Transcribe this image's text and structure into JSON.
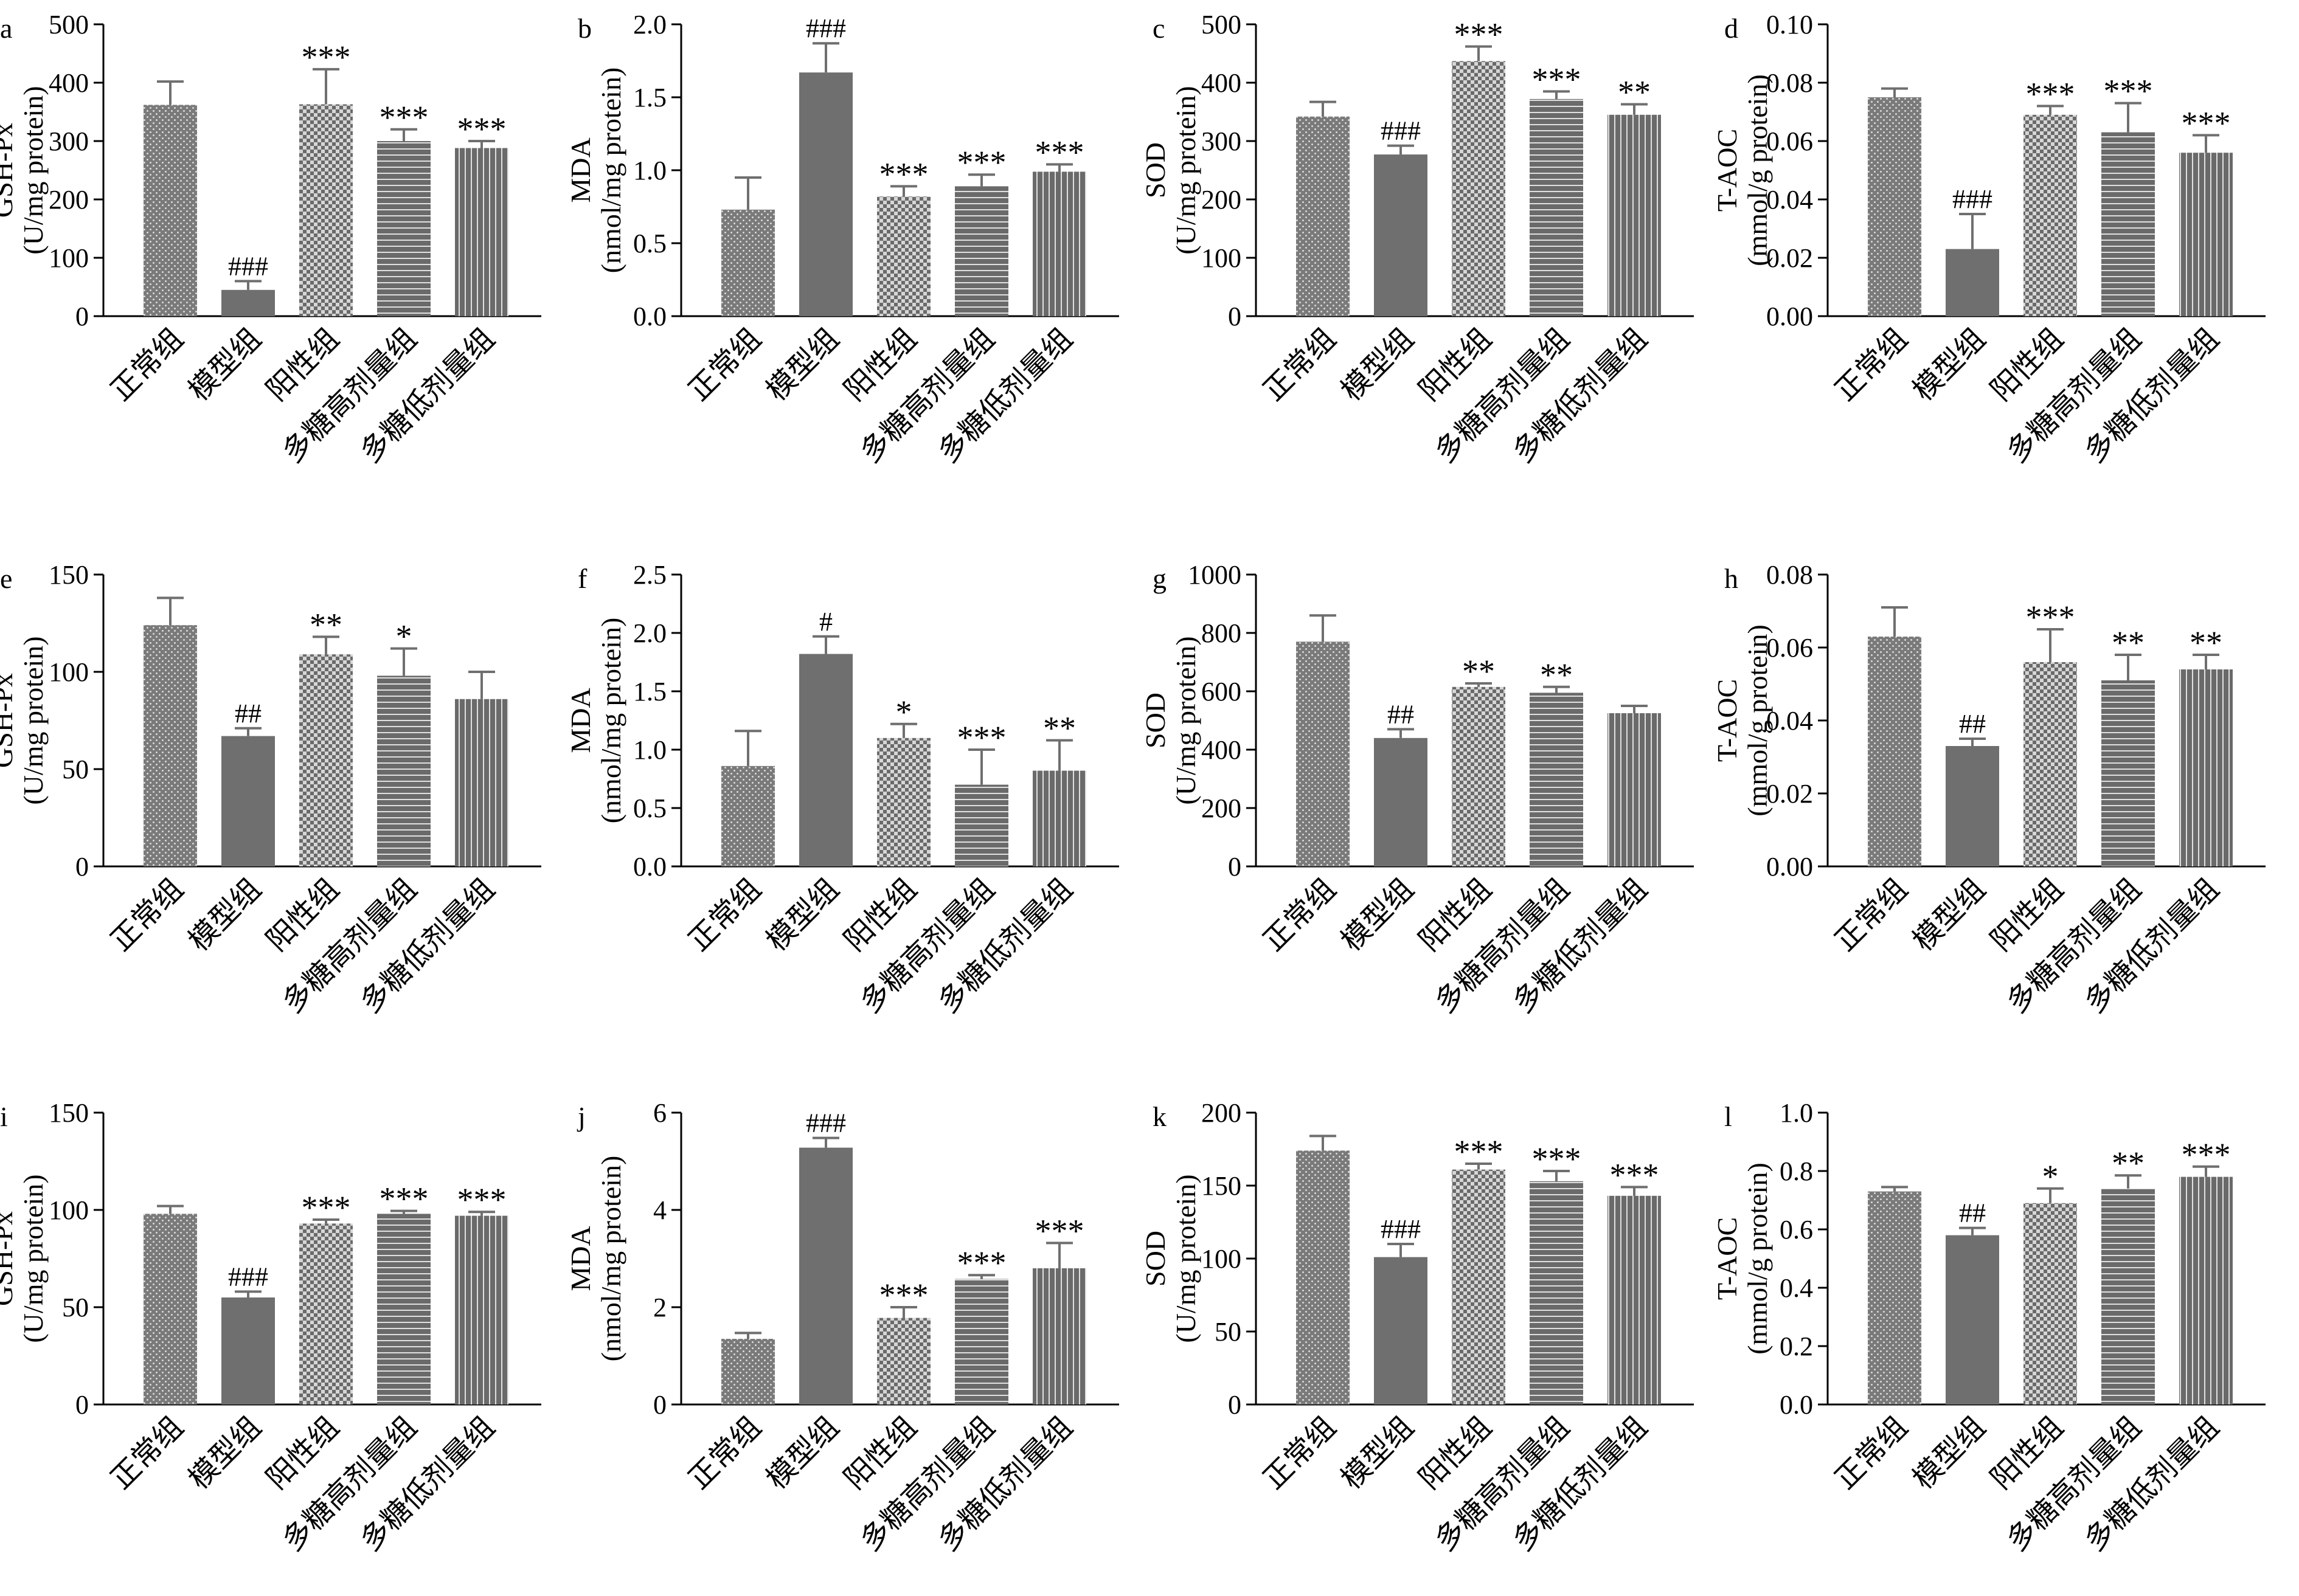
{
  "figure": {
    "categories": [
      "正常组",
      "模型组",
      "阳性组",
      "多糖高剂量组",
      "多糖低剂量组"
    ],
    "colors": {
      "bar": "#6f6f6f",
      "pattern_light": "#d9d9d9",
      "axis": "#000000"
    }
  },
  "chart_data": [
    {
      "panel": "a",
      "type": "bar",
      "ylabel": "GSH-Px",
      "yunit": "(U/mg protein)",
      "ylim": [
        0,
        500
      ],
      "yticks": [
        "0",
        "100",
        "200",
        "300",
        "400",
        "500"
      ],
      "categories": [
        "正常组",
        "模型组",
        "阳性组",
        "多糖高剂量组",
        "多糖低剂量组"
      ],
      "values": [
        362,
        45,
        363,
        300,
        288
      ],
      "errors": [
        40,
        15,
        60,
        20,
        12
      ],
      "annotations": [
        "",
        "###",
        "***",
        "***",
        "***"
      ]
    },
    {
      "panel": "b",
      "type": "bar",
      "ylabel": "MDA",
      "yunit": "(nmol/mg protein)",
      "ylim": [
        0,
        2.0
      ],
      "yticks": [
        "0.0",
        "0.5",
        "1.0",
        "1.5",
        "2.0"
      ],
      "categories": [
        "正常组",
        "模型组",
        "阳性组",
        "多糖高剂量组",
        "多糖低剂量组"
      ],
      "values": [
        0.73,
        1.67,
        0.82,
        0.89,
        0.99
      ],
      "errors": [
        0.22,
        0.2,
        0.07,
        0.08,
        0.05
      ],
      "annotations": [
        "",
        "###",
        "***",
        "***",
        "***"
      ]
    },
    {
      "panel": "c",
      "type": "bar",
      "ylabel": "SOD",
      "yunit": "(U/mg protein)",
      "ylim": [
        0,
        500
      ],
      "yticks": [
        "0",
        "100",
        "200",
        "300",
        "400",
        "500"
      ],
      "categories": [
        "正常组",
        "模型组",
        "阳性组",
        "多糖高剂量组",
        "多糖低剂量组"
      ],
      "values": [
        342,
        277,
        437,
        372,
        345
      ],
      "errors": [
        25,
        15,
        25,
        13,
        18
      ],
      "annotations": [
        "",
        "###",
        "***",
        "***",
        "**"
      ]
    },
    {
      "panel": "d",
      "type": "bar",
      "ylabel": "T-AOC",
      "yunit": "(mmol/g protein)",
      "ylim": [
        0,
        0.1
      ],
      "yticks": [
        "0.00",
        "0.02",
        "0.04",
        "0.06",
        "0.08",
        "0.10"
      ],
      "categories": [
        "正常组",
        "模型组",
        "阳性组",
        "多糖高剂量组",
        "多糖低剂量组"
      ],
      "values": [
        0.075,
        0.023,
        0.069,
        0.063,
        0.056
      ],
      "errors": [
        0.003,
        0.012,
        0.003,
        0.01,
        0.006
      ],
      "annotations": [
        "",
        "###",
        "***",
        "***",
        "***"
      ]
    },
    {
      "panel": "e",
      "type": "bar",
      "ylabel": "GSH-Px",
      "yunit": "(U/mg protein)",
      "ylim": [
        0,
        150
      ],
      "yticks": [
        "0",
        "50",
        "100",
        "150"
      ],
      "categories": [
        "正常组",
        "模型组",
        "阳性组",
        "多糖高剂量组",
        "多糖低剂量组"
      ],
      "values": [
        124,
        67,
        109,
        98,
        86
      ],
      "errors": [
        14,
        4,
        9,
        14,
        14
      ],
      "annotations": [
        "",
        "##",
        "**",
        "*",
        ""
      ]
    },
    {
      "panel": "f",
      "type": "bar",
      "ylabel": "MDA",
      "yunit": "(nmol/mg protein)",
      "ylim": [
        0,
        2.5
      ],
      "yticks": [
        "0.0",
        "0.5",
        "1.0",
        "1.5",
        "2.0",
        "2.5"
      ],
      "categories": [
        "正常组",
        "模型组",
        "阳性组",
        "多糖高剂量组",
        "多糖低剂量组"
      ],
      "values": [
        0.86,
        1.82,
        1.1,
        0.7,
        0.82
      ],
      "errors": [
        0.3,
        0.15,
        0.12,
        0.3,
        0.26
      ],
      "annotations": [
        "",
        "#",
        "*",
        "***",
        "**"
      ]
    },
    {
      "panel": "g",
      "type": "bar",
      "ylabel": "SOD",
      "yunit": "(U/mg protein)",
      "ylim": [
        0,
        1000
      ],
      "yticks": [
        "0",
        "200",
        "400",
        "600",
        "800",
        "1000"
      ],
      "categories": [
        "正常组",
        "模型组",
        "阳性组",
        "多糖高剂量组",
        "多糖低剂量组"
      ],
      "values": [
        770,
        440,
        615,
        595,
        525
      ],
      "errors": [
        90,
        30,
        12,
        20,
        25
      ],
      "annotations": [
        "",
        "##",
        "**",
        "**",
        ""
      ]
    },
    {
      "panel": "h",
      "type": "bar",
      "ylabel": "T-AOC",
      "yunit": "(mmol/g protein)",
      "ylim": [
        0,
        0.08
      ],
      "yticks": [
        "0.00",
        "0.02",
        "0.04",
        "0.06",
        "0.08"
      ],
      "categories": [
        "正常组",
        "模型组",
        "阳性组",
        "多糖高剂量组",
        "多糖低剂量组"
      ],
      "values": [
        0.063,
        0.033,
        0.056,
        0.051,
        0.054
      ],
      "errors": [
        0.008,
        0.002,
        0.009,
        0.007,
        0.004
      ],
      "annotations": [
        "",
        "##",
        "***",
        "**",
        "**"
      ]
    },
    {
      "panel": "i",
      "type": "bar",
      "ylabel": "GSH-Px",
      "yunit": "(U/mg protein)",
      "ylim": [
        0,
        150
      ],
      "yticks": [
        "0",
        "50",
        "100",
        "150"
      ],
      "categories": [
        "正常组",
        "模型组",
        "阳性组",
        "多糖高剂量组",
        "多糖低剂量组"
      ],
      "values": [
        98,
        55,
        93,
        98,
        97
      ],
      "errors": [
        4,
        3,
        2,
        1.5,
        2
      ],
      "annotations": [
        "",
        "###",
        "***",
        "***",
        "***"
      ]
    },
    {
      "panel": "j",
      "type": "bar",
      "ylabel": "MDA",
      "yunit": "(nmol/mg protein)",
      "ylim": [
        0,
        6
      ],
      "yticks": [
        "0",
        "2",
        "4",
        "6"
      ],
      "categories": [
        "正常组",
        "模型组",
        "阳性组",
        "多糖高剂量组",
        "多糖低剂量组"
      ],
      "values": [
        1.35,
        5.28,
        1.78,
        2.58,
        2.8
      ],
      "errors": [
        0.12,
        0.2,
        0.22,
        0.08,
        0.52
      ],
      "annotations": [
        "",
        "###",
        "***",
        "***",
        "***"
      ]
    },
    {
      "panel": "k",
      "type": "bar",
      "ylabel": "SOD",
      "yunit": "(U/mg protein)",
      "ylim": [
        0,
        200
      ],
      "yticks": [
        "0",
        "50",
        "100",
        "150",
        "200"
      ],
      "categories": [
        "正常组",
        "模型组",
        "阳性组",
        "多糖高剂量组",
        "多糖低剂量组"
      ],
      "values": [
        174,
        101,
        161,
        153,
        143
      ],
      "errors": [
        10,
        9,
        4,
        7,
        6
      ],
      "annotations": [
        "",
        "###",
        "***",
        "***",
        "***"
      ]
    },
    {
      "panel": "l",
      "type": "bar",
      "ylabel": "T-AOC",
      "yunit": "(mmol/g protein)",
      "ylim": [
        0,
        1.0
      ],
      "yticks": [
        "0.0",
        "0.2",
        "0.4",
        "0.6",
        "0.8",
        "1.0"
      ],
      "categories": [
        "正常组",
        "模型组",
        "阳性组",
        "多糖高剂量组",
        "多糖低剂量组"
      ],
      "values": [
        0.73,
        0.58,
        0.69,
        0.74,
        0.78
      ],
      "errors": [
        0.015,
        0.025,
        0.05,
        0.045,
        0.035
      ],
      "annotations": [
        "",
        "##",
        "*",
        "**",
        "***"
      ]
    }
  ]
}
